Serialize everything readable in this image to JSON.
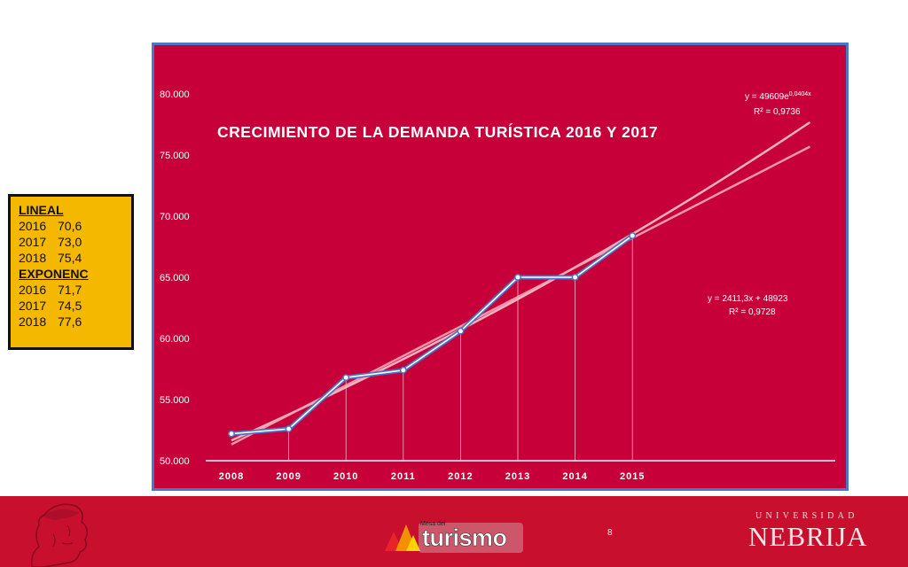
{
  "side_table": {
    "lineal_label": "LINEAL",
    "lineal_rows": [
      {
        "year": "2016",
        "value": "70,6"
      },
      {
        "year": "2017",
        "value": "73,0"
      },
      {
        "year": "2018",
        "value": "75,4"
      }
    ],
    "expon_label": "EXPONENC",
    "expon_rows": [
      {
        "year": "2016",
        "value": "71,7"
      },
      {
        "year": "2017",
        "value": "74,5"
      },
      {
        "year": "2018",
        "value": "77,6"
      }
    ]
  },
  "chart_data": {
    "type": "line",
    "title": "CRECIMIENTO  DE LA DEMANDA TURÍSTICA  2016 Y 2017",
    "x": [
      "2008",
      "2009",
      "2010",
      "2011",
      "2012",
      "2013",
      "2014",
      "2015"
    ],
    "series": [
      {
        "values": [
          52200,
          52600,
          56800,
          57400,
          60600,
          65000,
          65000,
          68400
        ],
        "color": "#4a72c4"
      }
    ],
    "trendlines": [
      {
        "kind": "exponential",
        "equation_prefix": "y = 49609e",
        "equation_exponent": "0,0404x",
        "r2": "R² = 0,9736",
        "color": "#f7c4cf"
      },
      {
        "kind": "linear",
        "equation": "y = 2411,3x + 48923",
        "r2": "R² = 0,9728",
        "color": "#f2a8b8"
      }
    ],
    "ylim": [
      50000,
      80000
    ],
    "yticks": [
      "50.000",
      "55.000",
      "60.000",
      "65.000",
      "70.000",
      "75.000",
      "80.000"
    ],
    "xlabel": "",
    "ylabel": "",
    "grid": false,
    "background": "#c8003a"
  },
  "footer": {
    "logo_small": "Mesa del",
    "logo_word": "turismo",
    "university_top": "UNIVERSIDAD",
    "university_name": "NEBRIJA",
    "slide_number": "8"
  }
}
